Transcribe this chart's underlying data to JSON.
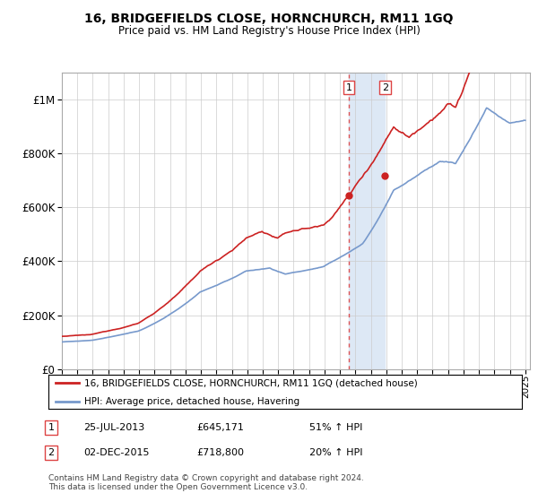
{
  "title": "16, BRIDGEFIELDS CLOSE, HORNCHURCH, RM11 1GQ",
  "subtitle": "Price paid vs. HM Land Registry's House Price Index (HPI)",
  "legend_line1": "16, BRIDGEFIELDS CLOSE, HORNCHURCH, RM11 1GQ (detached house)",
  "legend_line2": "HPI: Average price, detached house, Havering",
  "table_rows": [
    {
      "num": "1",
      "date": "25-JUL-2013",
      "price": "£645,171",
      "change": "51% ↑ HPI"
    },
    {
      "num": "2",
      "date": "02-DEC-2015",
      "price": "£718,800",
      "change": "20% ↑ HPI"
    }
  ],
  "footnote1": "Contains HM Land Registry data © Crown copyright and database right 2024.",
  "footnote2": "This data is licensed under the Open Government Licence v3.0.",
  "red_color": "#cc2222",
  "blue_color": "#7799cc",
  "shading_color": "#dde8f5",
  "vline_color": "#dd4444",
  "ylim": [
    0,
    1100000
  ],
  "yticks": [
    0,
    200000,
    400000,
    600000,
    800000,
    1000000
  ],
  "ytick_labels": [
    "£0",
    "£200K",
    "£400K",
    "£600K",
    "£800K",
    "£1M"
  ],
  "sale1_x": 2013.57,
  "sale1_y": 645171,
  "sale2_x": 2015.92,
  "sale2_y": 718800,
  "vline1_x": 2013.57,
  "vline2_x": 2015.92,
  "shade_x1": 2013.57,
  "shade_x2": 2015.92,
  "xlim_left": 1995.0,
  "xlim_right": 2025.3
}
